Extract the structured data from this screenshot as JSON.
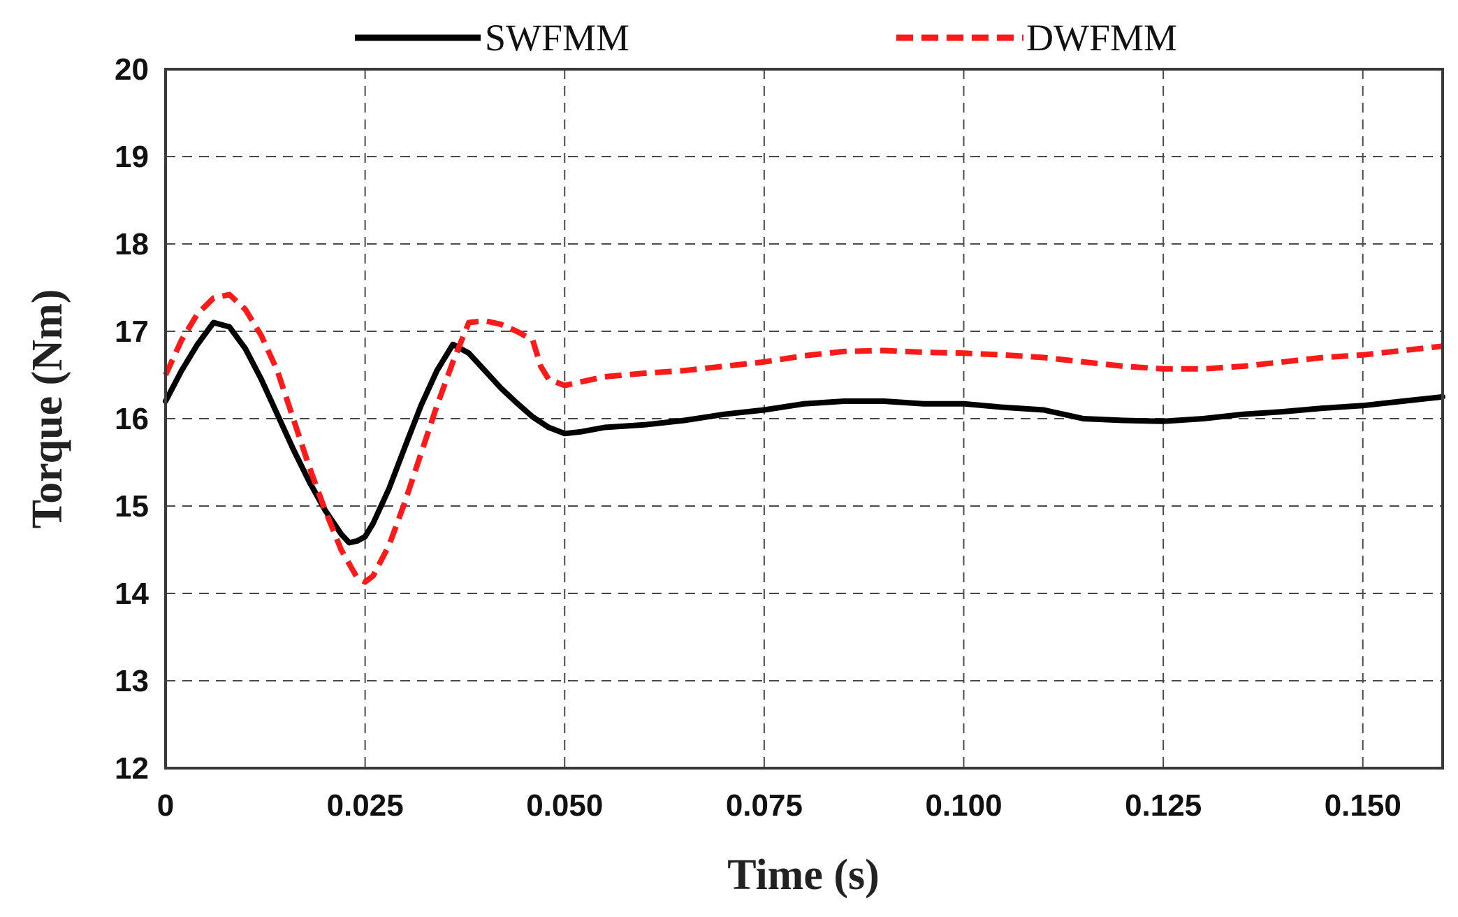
{
  "chart_data": {
    "type": "line",
    "title": "",
    "xlabel": "Time (s)",
    "ylabel": "Torque (Nm)",
    "xlim": [
      0,
      0.16
    ],
    "ylim": [
      12,
      20
    ],
    "xticks": [
      0,
      0.025,
      0.05,
      0.075,
      0.1,
      0.125,
      0.15
    ],
    "xtick_labels": [
      "0",
      "0.025",
      "0.050",
      "0.075",
      "0.100",
      "0.125",
      "0.150"
    ],
    "yticks": [
      12,
      13,
      14,
      15,
      16,
      17,
      18,
      19,
      20
    ],
    "ytick_labels": [
      "12",
      "13",
      "14",
      "15",
      "16",
      "17",
      "18",
      "19",
      "20"
    ],
    "grid": true,
    "legend_position": "top-center",
    "series": [
      {
        "name": "SWFMM",
        "color": "#000000",
        "style": "solid",
        "x": [
          0,
          0.002,
          0.004,
          0.006,
          0.008,
          0.01,
          0.012,
          0.014,
          0.016,
          0.018,
          0.02,
          0.022,
          0.023,
          0.024,
          0.025,
          0.026,
          0.028,
          0.03,
          0.032,
          0.034,
          0.036,
          0.038,
          0.04,
          0.042,
          0.044,
          0.046,
          0.048,
          0.05,
          0.052,
          0.055,
          0.06,
          0.065,
          0.07,
          0.075,
          0.08,
          0.085,
          0.09,
          0.095,
          0.1,
          0.105,
          0.11,
          0.115,
          0.12,
          0.125,
          0.13,
          0.135,
          0.14,
          0.145,
          0.15,
          0.155,
          0.16
        ],
        "y": [
          16.2,
          16.55,
          16.85,
          17.1,
          17.05,
          16.8,
          16.45,
          16.05,
          15.65,
          15.28,
          14.95,
          14.68,
          14.58,
          14.6,
          14.65,
          14.8,
          15.2,
          15.68,
          16.15,
          16.55,
          16.85,
          16.75,
          16.55,
          16.35,
          16.18,
          16.02,
          15.9,
          15.83,
          15.85,
          15.9,
          15.93,
          15.98,
          16.05,
          16.1,
          16.17,
          16.2,
          16.2,
          16.17,
          16.17,
          16.13,
          16.1,
          16.0,
          15.98,
          15.97,
          16.0,
          16.05,
          16.08,
          16.12,
          16.15,
          16.2,
          16.25
        ]
      },
      {
        "name": "DWFMM",
        "color": "#ff1a1a",
        "style": "dashed",
        "x": [
          0,
          0.002,
          0.004,
          0.006,
          0.008,
          0.01,
          0.012,
          0.014,
          0.016,
          0.018,
          0.02,
          0.022,
          0.024,
          0.025,
          0.026,
          0.028,
          0.03,
          0.032,
          0.034,
          0.036,
          0.038,
          0.04,
          0.042,
          0.044,
          0.046,
          0.047,
          0.048,
          0.05,
          0.052,
          0.055,
          0.06,
          0.065,
          0.07,
          0.075,
          0.08,
          0.085,
          0.09,
          0.095,
          0.1,
          0.105,
          0.11,
          0.115,
          0.12,
          0.125,
          0.13,
          0.135,
          0.14,
          0.145,
          0.15,
          0.155,
          0.16
        ],
        "y": [
          16.5,
          16.9,
          17.2,
          17.38,
          17.42,
          17.25,
          16.95,
          16.55,
          16.0,
          15.45,
          14.95,
          14.5,
          14.18,
          14.13,
          14.2,
          14.55,
          15.05,
          15.6,
          16.15,
          16.65,
          17.1,
          17.12,
          17.08,
          17.0,
          16.9,
          16.6,
          16.45,
          16.38,
          16.42,
          16.48,
          16.52,
          16.55,
          16.6,
          16.65,
          16.72,
          16.77,
          16.78,
          16.76,
          16.75,
          16.73,
          16.7,
          16.65,
          16.6,
          16.57,
          16.57,
          16.6,
          16.65,
          16.7,
          16.73,
          16.78,
          16.83
        ]
      }
    ]
  }
}
